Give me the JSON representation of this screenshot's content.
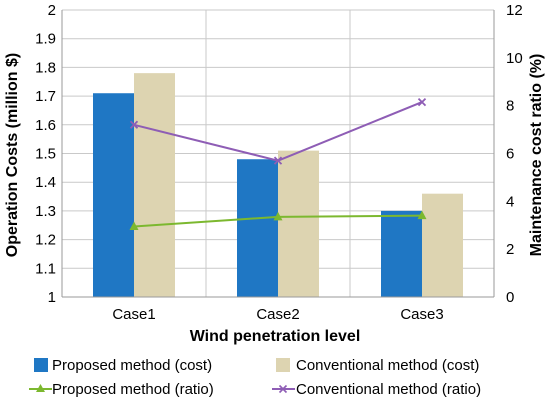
{
  "chart_data": {
    "type": "bar",
    "categories": [
      "Case1",
      "Case2",
      "Case3"
    ],
    "xlabel": "Wind penetration level",
    "ylabel": "Operation Costs (million $)",
    "y2label": "Maintenance cost ratio (%)",
    "ylim": [
      1,
      2
    ],
    "y2lim": [
      0,
      12
    ],
    "yticks": [
      "1",
      "1.1",
      "1.2",
      "1.3",
      "1.4",
      "1.5",
      "1.6",
      "1.7",
      "1.8",
      "1.9",
      "2"
    ],
    "y2ticks": [
      "0",
      "2",
      "4",
      "6",
      "8",
      "10",
      "12"
    ],
    "grid": true,
    "legend_position": "bottom",
    "bar_series": [
      {
        "name": "Proposed method (cost)",
        "values": [
          1.71,
          1.48,
          1.3
        ],
        "color": "#1f77c4"
      },
      {
        "name": "Conventional method (cost)",
        "values": [
          1.78,
          1.51,
          1.36
        ],
        "color": "#ddd4b1"
      }
    ],
    "line_series": [
      {
        "name": "Proposed method (ratio)",
        "values": [
          2.95,
          3.35,
          3.4
        ],
        "color": "#7cb82f",
        "marker": "triangle"
      },
      {
        "name": "Conventional method (ratio)",
        "values": [
          7.2,
          5.7,
          8.15
        ],
        "color": "#8e5db5",
        "marker": "x"
      }
    ]
  }
}
